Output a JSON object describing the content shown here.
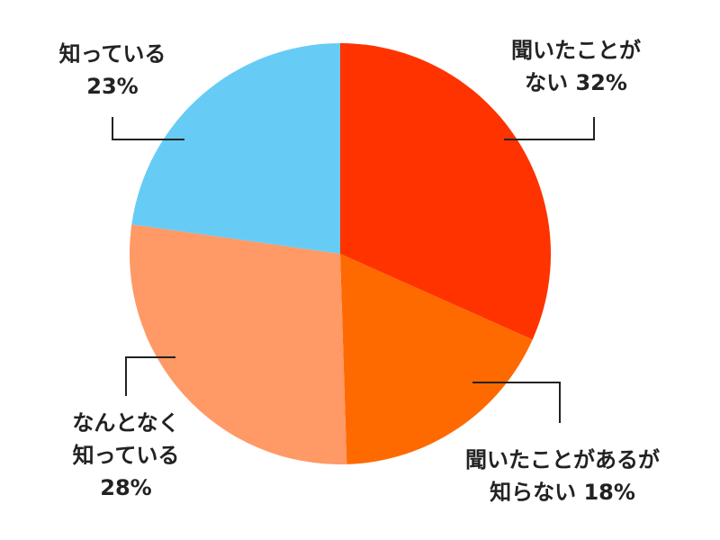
{
  "chart_data": {
    "type": "pie",
    "categories": [
      "聞いたことがない",
      "聞いたことがあるが知らない",
      "なんとなく知っている",
      "知っている"
    ],
    "values": [
      32,
      18,
      28,
      23
    ],
    "value_labels": [
      "32%",
      "18%",
      "28%",
      "23%"
    ],
    "colors": [
      "#ff3300",
      "#ff6a00",
      "#ff9966",
      "#66ccf5"
    ]
  }
}
